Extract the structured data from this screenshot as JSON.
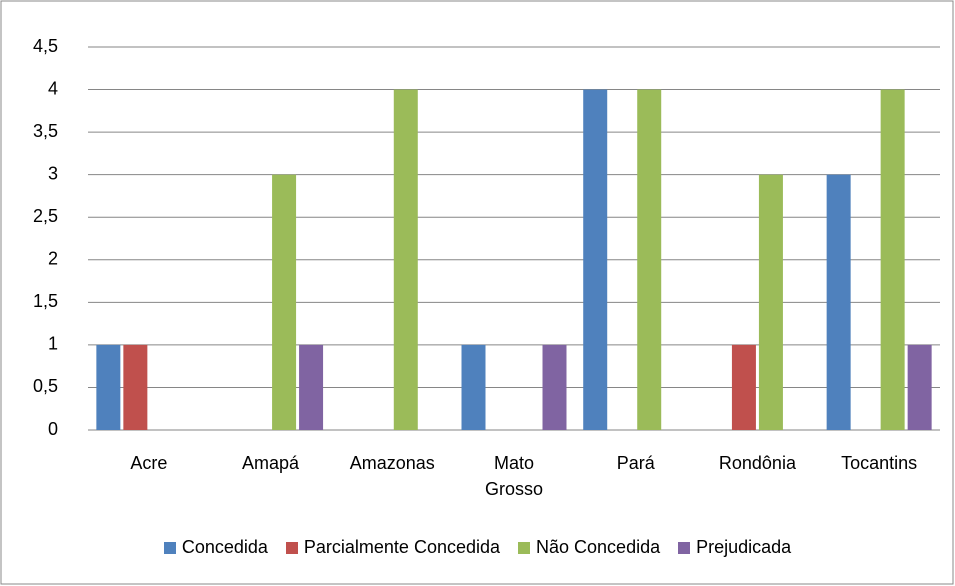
{
  "chart_data": {
    "type": "bar",
    "categories": [
      "Acre",
      "Amapá",
      "Amazonas",
      "Mato Grosso",
      "Pará",
      "Rondônia",
      "Tocantins"
    ],
    "series": [
      {
        "name": "Concedida",
        "color": "#4f81bd",
        "values": [
          1,
          0,
          0,
          1,
          4,
          0,
          3
        ]
      },
      {
        "name": "Parcialmente Concedida",
        "color": "#c0504d",
        "values": [
          1,
          0,
          0,
          0,
          0,
          1,
          0
        ]
      },
      {
        "name": "Não Concedida",
        "color": "#9bbb59",
        "values": [
          0,
          3,
          4,
          0,
          4,
          3,
          4
        ]
      },
      {
        "name": "Prejudicada",
        "color": "#8064a2",
        "values": [
          0,
          1,
          0,
          1,
          0,
          0,
          1
        ]
      }
    ],
    "ylim": [
      0,
      4.5
    ],
    "yticks": [
      0,
      {
        "value": 0.5,
        "label": "0,5"
      },
      1,
      {
        "value": 1.5,
        "label": "1,5"
      },
      2,
      {
        "value": 2.5,
        "label": "2,5"
      },
      3,
      {
        "value": 3.5,
        "label": "3,5"
      },
      4,
      {
        "value": 4.5,
        "label": "4,5"
      }
    ],
    "grid": true,
    "legend": "bottom"
  }
}
